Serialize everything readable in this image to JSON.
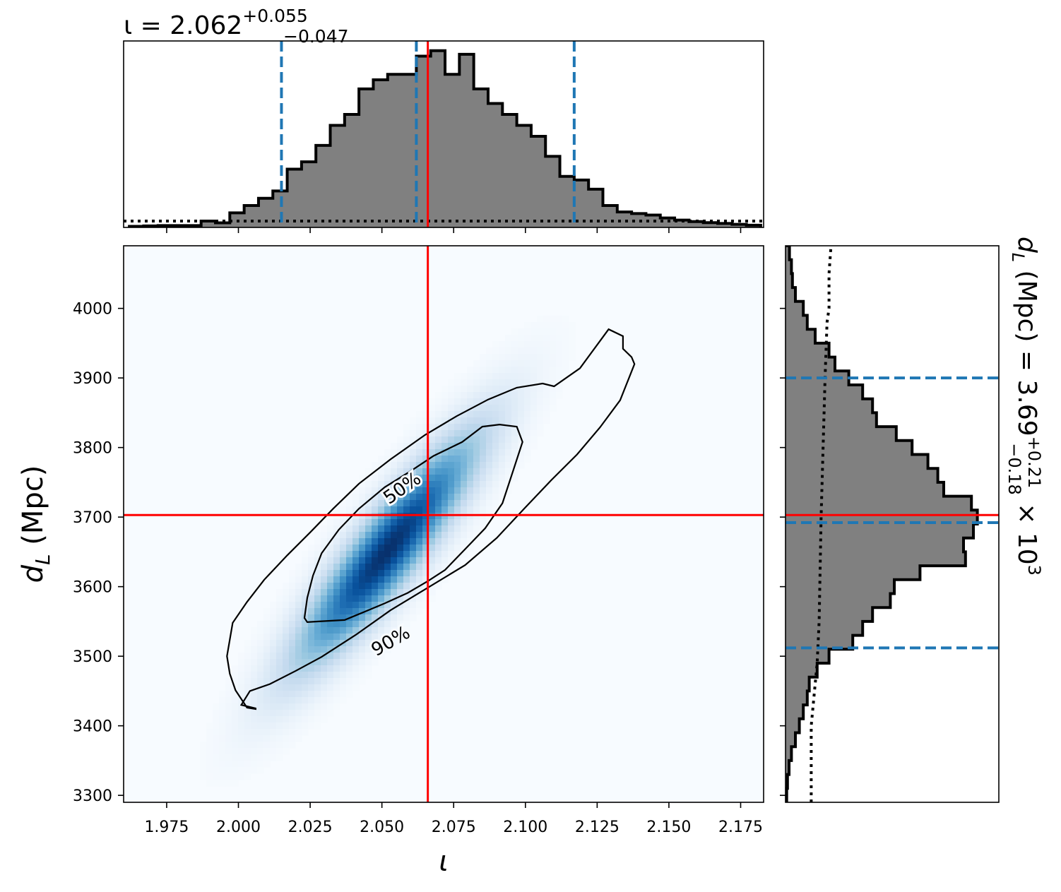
{
  "chart_data": [
    {
      "type": "heatmap",
      "panel": "joint",
      "xlabel": "ι",
      "ylabel_main": "d",
      "ylabel_sub": "L",
      "ylabel_rest": " (Mpc)",
      "xlim": [
        1.96,
        2.183
      ],
      "ylim": [
        3290,
        4090
      ],
      "x_ticks": [
        1.975,
        2.0,
        2.025,
        2.05,
        2.075,
        2.1,
        2.125,
        2.15,
        2.175
      ],
      "x_tick_labels": [
        "1.975",
        "2.000",
        "2.025",
        "2.050",
        "2.075",
        "2.100",
        "2.125",
        "2.150",
        "2.175"
      ],
      "y_ticks": [
        3300,
        3400,
        3500,
        3600,
        3700,
        3800,
        3900,
        4000
      ],
      "y_tick_labels": [
        "3300",
        "3400",
        "3500",
        "3600",
        "3700",
        "3800",
        "3900",
        "4000"
      ],
      "colormap": "Blues",
      "density_peak": {
        "x": 2.052,
        "y": 3652
      },
      "contours": [
        {
          "label": "50%",
          "points": [
            [
              2.023,
              3555
            ],
            [
              2.024,
              3549
            ],
            [
              2.028,
              3550
            ],
            [
              2.037,
              3552
            ],
            [
              2.044,
              3564
            ],
            [
              2.051,
              3576
            ],
            [
              2.059,
              3591
            ],
            [
              2.066,
              3608
            ],
            [
              2.072,
              3624
            ],
            [
              2.079,
              3654
            ],
            [
              2.086,
              3684
            ],
            [
              2.092,
              3720
            ],
            [
              2.096,
              3770
            ],
            [
              2.099,
              3808
            ],
            [
              2.097,
              3830
            ],
            [
              2.091,
              3833
            ],
            [
              2.085,
              3830
            ],
            [
              2.078,
              3808
            ],
            [
              2.068,
              3788
            ],
            [
              2.06,
              3766
            ],
            [
              2.051,
              3743
            ],
            [
              2.042,
              3712
            ],
            [
              2.035,
              3682
            ],
            [
              2.029,
              3648
            ],
            [
              2.026,
              3616
            ],
            [
              2.024,
              3584
            ],
            [
              2.023,
              3555
            ]
          ]
        },
        {
          "label": "90%",
          "points": [
            [
              1.999,
              3451
            ],
            [
              1.997,
              3475
            ],
            [
              1.996,
              3500
            ],
            [
              1.998,
              3548
            ],
            [
              2.003,
              3578
            ],
            [
              2.009,
              3610
            ],
            [
              2.017,
              3645
            ],
            [
              2.025,
              3678
            ],
            [
              2.033,
              3712
            ],
            [
              2.042,
              3748
            ],
            [
              2.053,
              3783
            ],
            [
              2.065,
              3818
            ],
            [
              2.076,
              3845
            ],
            [
              2.087,
              3869
            ],
            [
              2.097,
              3886
            ],
            [
              2.106,
              3892
            ],
            [
              2.11,
              3888
            ],
            [
              2.119,
              3914
            ],
            [
              2.129,
              3970
            ],
            [
              2.134,
              3960
            ],
            [
              2.134,
              3942
            ],
            [
              2.137,
              3930
            ],
            [
              2.138,
              3920
            ],
            [
              2.133,
              3868
            ],
            [
              2.126,
              3829
            ],
            [
              2.118,
              3790
            ],
            [
              2.109,
              3753
            ],
            [
              2.1,
              3714
            ],
            [
              2.09,
              3670
            ],
            [
              2.079,
              3631
            ],
            [
              2.065,
              3596
            ],
            [
              2.053,
              3566
            ],
            [
              2.041,
              3531
            ],
            [
              2.029,
              3499
            ],
            [
              2.02,
              3479
            ],
            [
              2.011,
              3460
            ],
            [
              2.004,
              3450
            ],
            [
              2.001,
              3430
            ],
            [
              2.006,
              3425
            ],
            [
              2.006,
              3424
            ],
            [
              2.003,
              3426
            ],
            [
              1.999,
              3451
            ]
          ]
        }
      ],
      "contour_labels": [
        {
          "text": "50%",
          "x": 2.057,
          "y": 3742,
          "angle": -35
        },
        {
          "text": "90%",
          "x": 2.053,
          "y": 3522,
          "angle": -30
        }
      ],
      "truth": {
        "x": 2.066,
        "y": 3703
      }
    },
    {
      "type": "bar",
      "panel": "marginal-top",
      "title_main": "ι = 2.062",
      "title_sup": "+0.055",
      "title_sub": "−0.047",
      "xlim": [
        1.96,
        2.183
      ],
      "bin_edges": [
        1.962,
        1.967,
        1.972,
        1.977,
        1.982,
        1.987,
        1.992,
        1.997,
        2.002,
        2.007,
        2.012,
        2.017,
        2.022,
        2.027,
        2.032,
        2.037,
        2.042,
        2.047,
        2.052,
        2.057,
        2.062,
        2.067,
        2.072,
        2.077,
        2.082,
        2.087,
        2.092,
        2.097,
        2.102,
        2.107,
        2.112,
        2.117,
        2.122,
        2.127,
        2.132,
        2.137,
        2.142,
        2.147,
        2.152,
        2.157,
        2.162,
        2.167,
        2.172,
        2.177,
        2.182
      ],
      "values": [
        0.006,
        0.008,
        0.01,
        0.01,
        0.01,
        0.035,
        0.025,
        0.08,
        0.12,
        0.16,
        0.2,
        0.32,
        0.36,
        0.45,
        0.56,
        0.62,
        0.76,
        0.81,
        0.84,
        0.84,
        0.94,
        0.97,
        0.84,
        0.95,
        0.76,
        0.68,
        0.62,
        0.56,
        0.5,
        0.39,
        0.28,
        0.26,
        0.21,
        0.12,
        0.085,
        0.076,
        0.068,
        0.052,
        0.04,
        0.032,
        0.026,
        0.022,
        0.017,
        0.012
      ],
      "quantiles": [
        2.015,
        2.062,
        2.117
      ],
      "truth": 2.066,
      "prior_level": 0.035
    },
    {
      "type": "bar",
      "panel": "marginal-right",
      "orientation": "horizontal",
      "title_main": "d",
      "title_sub_var": "L",
      "title_mid": " (Mpc) = 3.69",
      "title_sup": "+0.21",
      "title_sub": "−0.18",
      "title_tail": " × 10",
      "title_exp": "3",
      "ylim": [
        3290,
        4090
      ],
      "bin_edges": [
        3290,
        3310,
        3330,
        3350,
        3370,
        3390,
        3410,
        3430,
        3450,
        3470,
        3490,
        3510,
        3530,
        3550,
        3570,
        3590,
        3610,
        3630,
        3650,
        3670,
        3690,
        3710,
        3730,
        3750,
        3770,
        3790,
        3810,
        3830,
        3850,
        3870,
        3890,
        3910,
        3930,
        3950,
        3970,
        3990,
        4010,
        4030,
        4050,
        4070,
        4090
      ],
      "values": [
        0.006,
        0.01,
        0.018,
        0.03,
        0.05,
        0.07,
        0.09,
        0.11,
        0.12,
        0.16,
        0.22,
        0.34,
        0.39,
        0.44,
        0.53,
        0.55,
        0.68,
        0.91,
        0.9,
        0.95,
        0.97,
        0.94,
        0.8,
        0.77,
        0.72,
        0.64,
        0.56,
        0.46,
        0.44,
        0.39,
        0.32,
        0.25,
        0.22,
        0.15,
        0.11,
        0.09,
        0.05,
        0.035,
        0.03,
        0.02
      ],
      "quantiles": [
        3512,
        3692,
        3900
      ],
      "truth": 3703,
      "prior_curve": [
        [
          3290,
          0.13
        ],
        [
          3400,
          0.13
        ],
        [
          3460,
          0.15
        ],
        [
          3490,
          0.16
        ],
        [
          3550,
          0.17
        ],
        [
          3700,
          0.18
        ],
        [
          3900,
          0.2
        ],
        [
          3980,
          0.21
        ],
        [
          4000,
          0.22
        ],
        [
          4050,
          0.22
        ],
        [
          4090,
          0.23
        ]
      ]
    }
  ],
  "colors": {
    "truth": "#ff0000",
    "quantile": "#1f77b4",
    "hist_fill": "#808080",
    "hist_edge": "#000000",
    "contour": "#000000"
  }
}
